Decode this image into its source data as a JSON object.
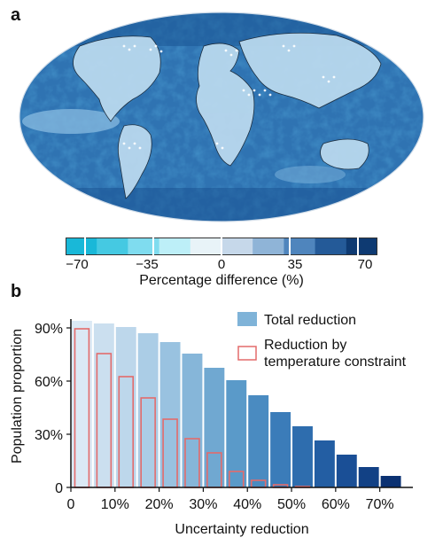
{
  "panel_a": {
    "label": "a",
    "colorbar": {
      "ticks": [
        "−70",
        "−35",
        "0",
        "35",
        "70"
      ],
      "tick_values": [
        -70,
        -35,
        0,
        35,
        70
      ],
      "range": [
        -80,
        80
      ],
      "title": "Percentage difference (%)",
      "colors": [
        "#19b8d8",
        "#45c9e2",
        "#7fdcef",
        "#bdeff8",
        "#e8f3f8",
        "#c6d8ea",
        "#8fb4d7",
        "#4f85bd",
        "#245a98",
        "#0e3a72"
      ]
    }
  },
  "panel_b": {
    "label": "b",
    "legend": {
      "total": "Total reduction",
      "temperature": "Reduction by temperature constraint"
    }
  },
  "chart_data": {
    "type": "bar",
    "xlabel": "Uncertainty reduction",
    "ylabel": "Population proportion",
    "x_ticks": [
      "0",
      "10%",
      "20%",
      "30%",
      "40%",
      "50%",
      "60%",
      "70%"
    ],
    "y_ticks": [
      "0",
      "30%",
      "60%",
      "90%"
    ],
    "xlim": [
      0,
      77.5
    ],
    "ylim": [
      0,
      95
    ],
    "categories": [
      2.5,
      7.5,
      12.5,
      17.5,
      22.5,
      27.5,
      32.5,
      37.5,
      42.5,
      47.5,
      52.5,
      57.5,
      62.5,
      67.5,
      72.5
    ],
    "series": [
      {
        "name": "Total reduction",
        "values": [
          94,
          92.5,
          90.5,
          87,
          82,
          75.5,
          67.5,
          60.5,
          52,
          42.5,
          34.5,
          26.5,
          18.5,
          11.5,
          6.5
        ],
        "colors": [
          "#dbe9f5",
          "#cbdfef",
          "#bdd7eb",
          "#abcde6",
          "#99c2e0",
          "#86b6d9",
          "#70a8d1",
          "#5a9ac9",
          "#4a8bc1",
          "#3b7cb9",
          "#2e6dae",
          "#235ea3",
          "#1a4f96",
          "#124185",
          "#0b3172"
        ]
      },
      {
        "name": "Reduction by temperature constraint",
        "values": [
          89.5,
          75.5,
          62.5,
          50.5,
          38.5,
          27.5,
          19.5,
          9,
          4,
          1.5,
          0.5,
          0,
          0,
          0,
          0
        ],
        "color": "#e36b6b"
      }
    ]
  }
}
